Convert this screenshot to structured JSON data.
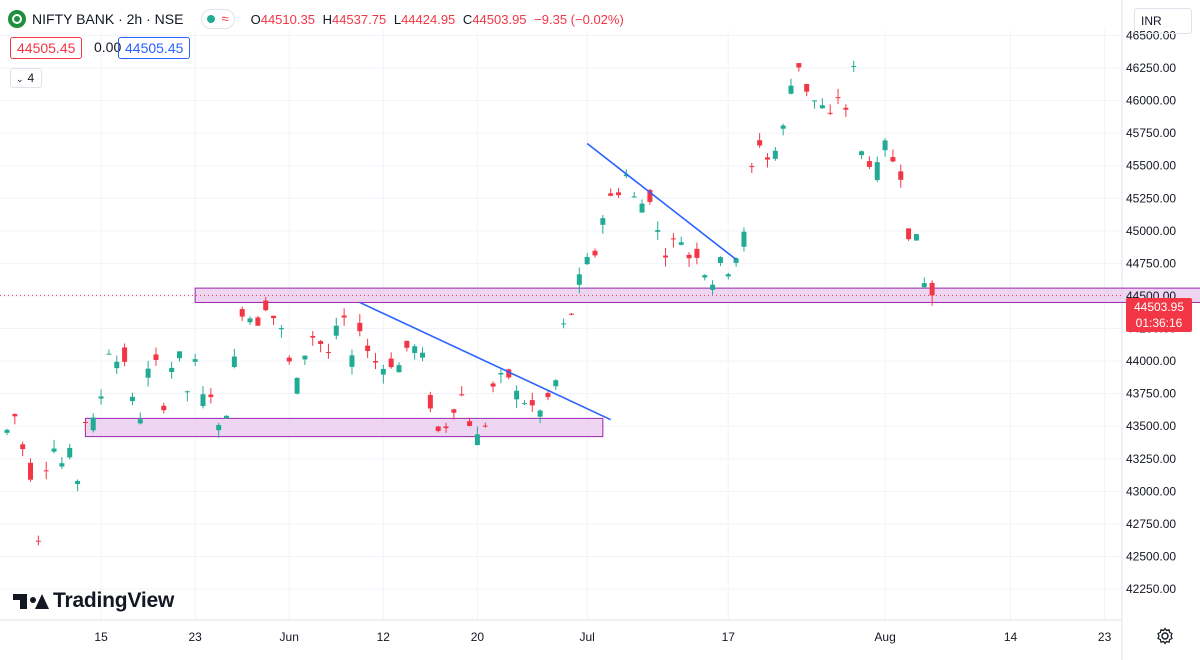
{
  "header": {
    "symbol_title": "NIFTY BANK · 2h · NSE",
    "status_wave": "≈",
    "ohlc": [
      {
        "key": "O",
        "value": "44510.35"
      },
      {
        "key": "H",
        "value": "44537.75"
      },
      {
        "key": "L",
        "value": "44424.95"
      },
      {
        "key": "C",
        "value": "44503.95"
      },
      {
        "key": "",
        "value": "−9.35 (−0.02%)"
      }
    ],
    "bid": "44505.45",
    "spread": "0.00",
    "ask": "44505.45",
    "indicators_count": "4",
    "currency": "INR"
  },
  "branding": {
    "logo_text": "TradingView"
  },
  "last_price": {
    "price": "44503.95",
    "countdown": "01:36:16"
  },
  "colors": {
    "up": "#22ab94",
    "down": "#f23645",
    "trendline": "#2962ff",
    "zone_fill": "#e8c8ee",
    "zone_stroke": "#9c27b0",
    "grid": "#f0f3fa"
  },
  "icons": {
    "symbol": "symbol-logo-icon",
    "settings": "gear-icon",
    "chevron": "chevron-down-icon"
  },
  "chart_data": {
    "type": "candlestick",
    "title": "NIFTY BANK · 2h · NSE",
    "ylim": [
      42150,
      46420
    ],
    "y_ticks": [
      "42250.00",
      "42500.00",
      "42750.00",
      "43000.00",
      "43250.00",
      "43500.00",
      "43750.00",
      "44000.00",
      "44250.00",
      "44500.00",
      "44750.00",
      "45000.00",
      "45250.00",
      "45500.00",
      "45750.00",
      "46000.00",
      "46250.00",
      "46500.00"
    ],
    "y_tick_values": [
      42250,
      42500,
      42750,
      43000,
      43250,
      43500,
      43750,
      44000,
      44250,
      44500,
      44750,
      45000,
      45250,
      45500,
      45750,
      46000,
      46250,
      46500
    ],
    "x_ticks": [
      {
        "label": "15",
        "bar": 12
      },
      {
        "label": "23",
        "bar": 24
      },
      {
        "label": "Jun",
        "bar": 36
      },
      {
        "label": "12",
        "bar": 48
      },
      {
        "label": "20",
        "bar": 60
      },
      {
        "label": "Jul",
        "bar": 74
      },
      {
        "label": "17",
        "bar": 92
      },
      {
        "label": "Aug",
        "bar": 112
      },
      {
        "label": "14",
        "bar": 128
      },
      {
        "label": "23",
        "bar": 140
      }
    ],
    "close_path": [
      [
        0,
        43450
      ],
      [
        1,
        43600
      ],
      [
        2,
        43350
      ],
      [
        3,
        43200
      ],
      [
        4,
        42600
      ],
      [
        5,
        43200
      ],
      [
        6,
        43350
      ],
      [
        7,
        43200
      ],
      [
        8,
        43300
      ],
      [
        9,
        43050
      ],
      [
        10,
        43550
      ],
      [
        11,
        43500
      ],
      [
        12,
        43700
      ],
      [
        13,
        44100
      ],
      [
        14,
        44000
      ],
      [
        15,
        44050
      ],
      [
        16,
        43700
      ],
      [
        17,
        43550
      ],
      [
        18,
        43900
      ],
      [
        19,
        44000
      ],
      [
        20,
        43650
      ],
      [
        21,
        43950
      ],
      [
        22,
        44050
      ],
      [
        23,
        43750
      ],
      [
        24,
        44000
      ],
      [
        25,
        43700
      ],
      [
        26,
        43800
      ],
      [
        27,
        43450
      ],
      [
        28,
        43600
      ],
      [
        29,
        43950
      ],
      [
        30,
        44400
      ],
      [
        31,
        44350
      ],
      [
        32,
        44300
      ],
      [
        33,
        44450
      ],
      [
        34,
        44350
      ],
      [
        35,
        44250
      ],
      [
        36,
        44000
      ],
      [
        37,
        43800
      ],
      [
        38,
        44050
      ],
      [
        39,
        44200
      ],
      [
        40,
        44150
      ],
      [
        41,
        44050
      ],
      [
        42,
        44200
      ],
      [
        43,
        44350
      ],
      [
        44,
        43950
      ],
      [
        45,
        44300
      ],
      [
        46,
        44100
      ],
      [
        47,
        44000
      ],
      [
        48,
        43950
      ],
      [
        49,
        44000
      ],
      [
        50,
        43950
      ],
      [
        51,
        44100
      ],
      [
        52,
        44100
      ],
      [
        53,
        44050
      ],
      [
        54,
        43700
      ],
      [
        55,
        43450
      ],
      [
        56,
        43500
      ],
      [
        57,
        43650
      ],
      [
        58,
        43750
      ],
      [
        59,
        43550
      ],
      [
        60,
        43400
      ],
      [
        61,
        43500
      ],
      [
        62,
        43800
      ],
      [
        63,
        43850
      ],
      [
        64,
        43900
      ],
      [
        65,
        43750
      ],
      [
        66,
        43700
      ],
      [
        67,
        43650
      ],
      [
        68,
        43600
      ],
      [
        69,
        43700
      ],
      [
        70,
        43800
      ],
      [
        71,
        44250
      ],
      [
        72,
        44350
      ],
      [
        73,
        44600
      ],
      [
        74,
        44750
      ],
      [
        75,
        44800
      ],
      [
        76,
        45100
      ],
      [
        77,
        45250
      ],
      [
        78,
        45300
      ],
      [
        79,
        45450
      ],
      [
        80,
        45250
      ],
      [
        81,
        45200
      ],
      [
        82,
        45300
      ],
      [
        83,
        45000
      ],
      [
        84,
        44850
      ],
      [
        85,
        44900
      ],
      [
        86,
        44950
      ],
      [
        87,
        44800
      ],
      [
        88,
        44850
      ],
      [
        89,
        44700
      ],
      [
        90,
        44600
      ],
      [
        91,
        44750
      ],
      [
        92,
        44700
      ],
      [
        93,
        44800
      ],
      [
        94,
        44900
      ],
      [
        95,
        45450
      ],
      [
        96,
        45700
      ],
      [
        97,
        45550
      ],
      [
        98,
        45600
      ],
      [
        99,
        45750
      ],
      [
        100,
        46100
      ],
      [
        101,
        46300
      ],
      [
        102,
        46100
      ],
      [
        103,
        46000
      ],
      [
        104,
        45950
      ],
      [
        105,
        45850
      ],
      [
        106,
        46050
      ],
      [
        107,
        45900
      ],
      [
        108,
        46300
      ],
      [
        109,
        45600
      ],
      [
        110,
        45550
      ],
      [
        111,
        45450
      ],
      [
        112,
        45650
      ],
      [
        113,
        45550
      ],
      [
        114,
        45500
      ],
      [
        115,
        45000
      ],
      [
        116,
        44950
      ],
      [
        117,
        44600
      ],
      [
        118,
        44503.95
      ]
    ],
    "trendlines": [
      {
        "from": [
          74,
          45670
        ],
        "to": [
          93,
          44780
        ]
      },
      {
        "from": [
          45,
          44450
        ],
        "to": [
          77,
          43550
        ]
      }
    ],
    "zones": [
      {
        "from_bar": 24,
        "to_bar": 160,
        "low": 44450,
        "high": 44560
      },
      {
        "from_bar": 10,
        "to_bar": 76,
        "low": 43420,
        "high": 43560
      }
    ],
    "last_price_line": 44503.95
  }
}
